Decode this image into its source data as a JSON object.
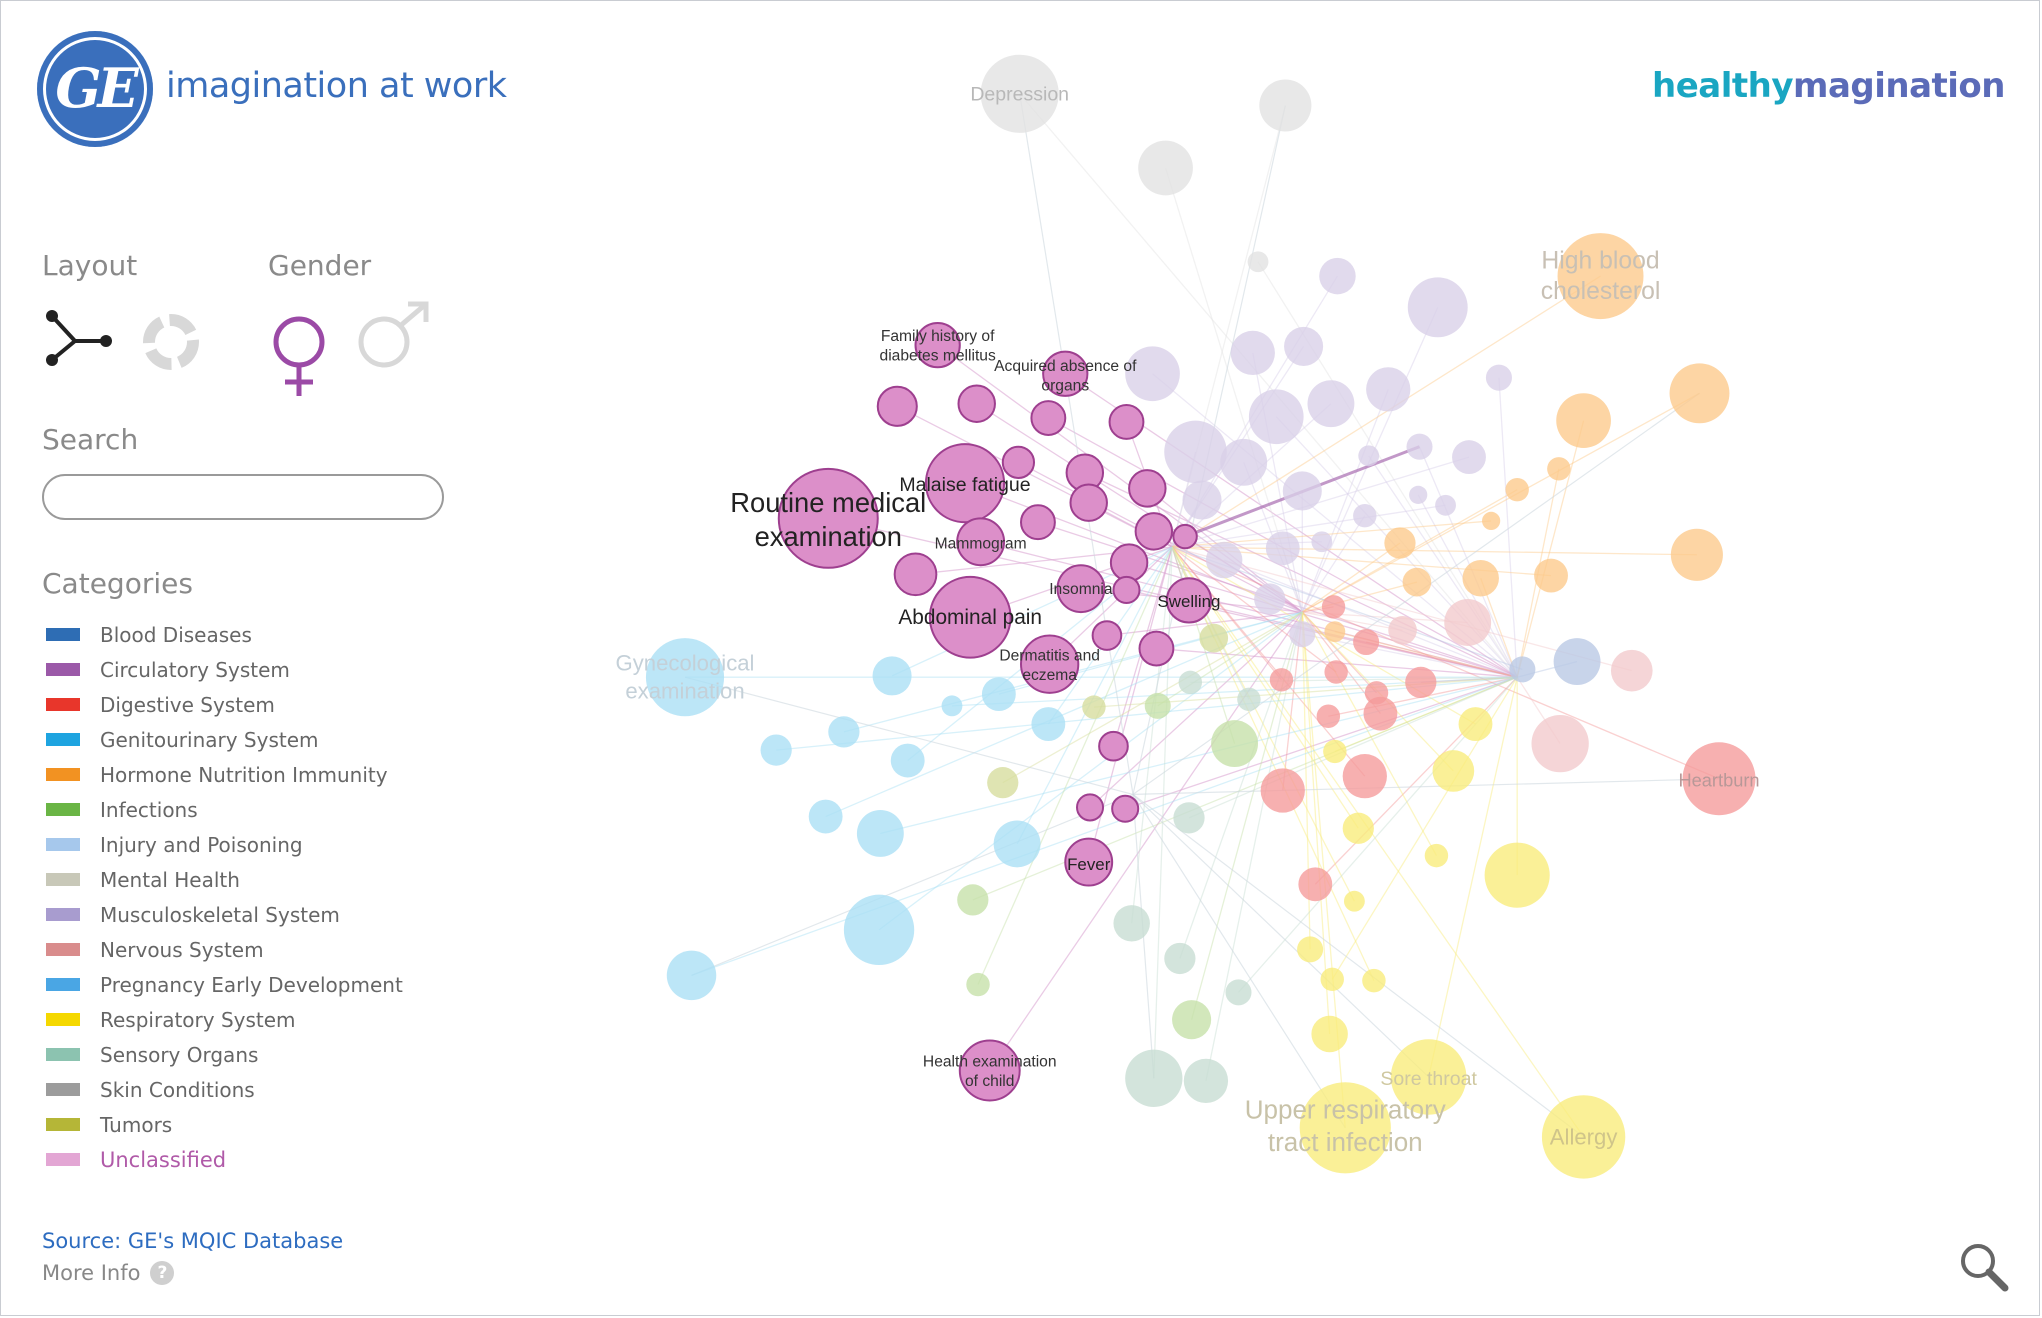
{
  "header": {
    "logo_text": "GE",
    "tagline": "imagination at work",
    "brand_part1": "healthy",
    "brand_part2": "magination"
  },
  "controls": {
    "layout_label": "Layout",
    "gender_label": "Gender",
    "search_label": "Search",
    "search_value": "",
    "categories_label": "Categories"
  },
  "categories": [
    {
      "name": "Blood Diseases",
      "color": "#2e6db4"
    },
    {
      "name": "Circulatory System",
      "color": "#9b59a8"
    },
    {
      "name": "Digestive System",
      "color": "#e8362b"
    },
    {
      "name": "Genitourinary System",
      "color": "#1ea4e0"
    },
    {
      "name": "Hormone Nutrition Immunity",
      "color": "#f29222"
    },
    {
      "name": "Infections",
      "color": "#6ab545"
    },
    {
      "name": "Injury and Poisoning",
      "color": "#a6c8ec"
    },
    {
      "name": "Mental Health",
      "color": "#c8c8b8"
    },
    {
      "name": "Musculoskeletal System",
      "color": "#a89ccf"
    },
    {
      "name": "Nervous System",
      "color": "#d98c8c"
    },
    {
      "name": "Pregnancy  Early Development",
      "color": "#4aa6e4"
    },
    {
      "name": "Respiratory System",
      "color": "#f5d800"
    },
    {
      "name": "Sensory Organs",
      "color": "#8cc3b0"
    },
    {
      "name": "Skin Conditions",
      "color": "#9c9c9c"
    },
    {
      "name": "Tumors",
      "color": "#b5b637"
    }
  ],
  "unclassified": {
    "name": "Unclassified",
    "color": "#e3a6d4"
  },
  "footer": {
    "source": "Source: GE's MQIC Database",
    "more_info": "More Info",
    "help": "?"
  },
  "graph_labels": {
    "depression": "Depression",
    "high_blood": [
      "High blood",
      "cholesterol"
    ],
    "family_history": [
      "Family history of",
      "diabetes mellitus"
    ],
    "acquired": [
      "Acquired absence of",
      "organs"
    ],
    "routine": [
      "Routine medical",
      "examination"
    ],
    "malaise": "Malaise  fatigue",
    "mammogram": "Mammogram",
    "insomnia": "Insomnia",
    "swelling": "Swelling",
    "abdominal": "Abdominal pain",
    "dermatitis": [
      "Dermatitis and",
      "eczema"
    ],
    "gyneco": [
      "Gynecological",
      "examination"
    ],
    "heartburn": "Heartburn",
    "fever": "Fever",
    "health_child": [
      "Health examination",
      "of child"
    ],
    "sore_throat": "Sore throat",
    "upper_resp": [
      "Upper respiratory",
      "tract infection"
    ],
    "allergy": "Allergy"
  },
  "colors": {
    "unclassified_node": "#dc8fc9",
    "unclassified_stroke": "#9e3f8f",
    "female_icon": "#9b4aa6",
    "inactive_icon": "#d8d8d8"
  }
}
